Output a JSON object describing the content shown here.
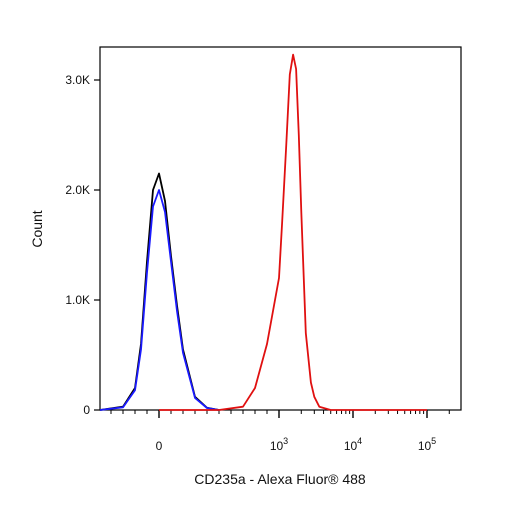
{
  "chart_data": {
    "type": "line",
    "title": "",
    "xlabel": "CD235a - Alexa Fluor® 488",
    "ylabel": "Count",
    "x_scale": "biexponential",
    "ylim": [
      0,
      3300
    ],
    "y_ticks": [
      {
        "value": 0,
        "label": "0"
      },
      {
        "value": 1000,
        "label": "1.0K"
      },
      {
        "value": 2000,
        "label": "2.0K"
      },
      {
        "value": 3000,
        "label": "3.0K"
      }
    ],
    "x_ticks": [
      {
        "value": 0,
        "base": "0",
        "exp": ""
      },
      {
        "value": 1000,
        "base": "10",
        "exp": "3"
      },
      {
        "value": 10000,
        "base": "10",
        "exp": "4"
      },
      {
        "value": 100000,
        "base": "10",
        "exp": "5"
      }
    ],
    "grid": false,
    "series": [
      {
        "color": "#000000",
        "x": [
          -500,
          -300,
          -200,
          -150,
          -100,
          -50,
          0,
          50,
          100,
          150,
          200,
          300,
          400,
          500
        ],
        "y": [
          0,
          30,
          200,
          600,
          1350,
          2000,
          2150,
          1900,
          1400,
          950,
          550,
          120,
          20,
          0
        ]
      },
      {
        "color": "#1a1aff",
        "x": [
          -500,
          -300,
          -200,
          -150,
          -100,
          -50,
          0,
          50,
          100,
          150,
          200,
          300,
          400,
          500
        ],
        "y": [
          0,
          25,
          180,
          550,
          1250,
          1850,
          2000,
          1800,
          1350,
          900,
          520,
          110,
          18,
          0
        ]
      },
      {
        "color": "#e01010",
        "x": [
          0,
          500,
          700,
          800,
          900,
          1000,
          1100,
          1250,
          1400,
          1550,
          1700,
          1850,
          2000,
          2300,
          2700,
          3000,
          3500,
          5000,
          100000
        ],
        "y": [
          0,
          0,
          30,
          200,
          600,
          1200,
          1700,
          2400,
          3050,
          3230,
          3100,
          2500,
          1800,
          700,
          250,
          120,
          30,
          0,
          0
        ]
      }
    ]
  }
}
